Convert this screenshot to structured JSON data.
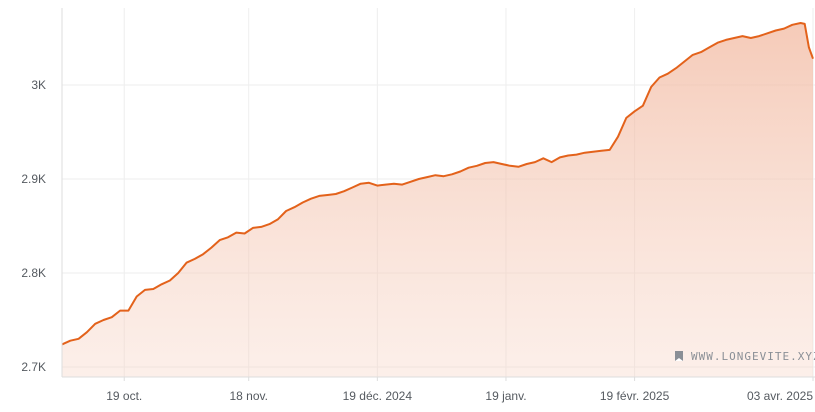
{
  "chart_data": {
    "type": "area",
    "title": "",
    "xlabel": "",
    "ylabel": "",
    "ylim": [
      2700,
      3075
    ],
    "xlim": [
      "2024-10-04",
      "2025-04-03"
    ],
    "grid": true,
    "legend": "none",
    "colors": {
      "line": "#e3621b",
      "fill": "#f1b49a",
      "grid": "#eeeeee",
      "axis": "#dddddd"
    },
    "y_ticks": [
      {
        "value": 2700,
        "label": "2.7K"
      },
      {
        "value": 2800,
        "label": "2.8K"
      },
      {
        "value": 2900,
        "label": "2.9K"
      },
      {
        "value": 3000,
        "label": "3K"
      }
    ],
    "x_ticks": [
      {
        "date": "2024-10-19",
        "label": "19 oct."
      },
      {
        "date": "2024-11-18",
        "label": "18 nov."
      },
      {
        "date": "2024-12-19",
        "label": "19 déc. 2024"
      },
      {
        "date": "2025-01-19",
        "label": "19 janv."
      },
      {
        "date": "2025-02-19",
        "label": "19 févr. 2025"
      },
      {
        "date": "2025-04-03",
        "label": "03 avr. 2025"
      }
    ],
    "series": [
      {
        "x": [
          "2024-10-04",
          "2024-10-06",
          "2024-10-08",
          "2024-10-10",
          "2024-10-12",
          "2024-10-14",
          "2024-10-16",
          "2024-10-18",
          "2024-10-20",
          "2024-10-22",
          "2024-10-24",
          "2024-10-26",
          "2024-10-28",
          "2024-10-30",
          "2024-11-01",
          "2024-11-03",
          "2024-11-05",
          "2024-11-07",
          "2024-11-09",
          "2024-11-11",
          "2024-11-13",
          "2024-11-15",
          "2024-11-17",
          "2024-11-19",
          "2024-11-21",
          "2024-11-23",
          "2024-11-25",
          "2024-11-27",
          "2024-11-29",
          "2024-12-01",
          "2024-12-03",
          "2024-12-05",
          "2024-12-07",
          "2024-12-09",
          "2024-12-11",
          "2024-12-13",
          "2024-12-15",
          "2024-12-17",
          "2024-12-19",
          "2024-12-21",
          "2024-12-23",
          "2024-12-25",
          "2024-12-27",
          "2024-12-29",
          "2024-12-31",
          "2025-01-02",
          "2025-01-04",
          "2025-01-06",
          "2025-01-08",
          "2025-01-10",
          "2025-01-12",
          "2025-01-14",
          "2025-01-16",
          "2025-01-18",
          "2025-01-20",
          "2025-01-22",
          "2025-01-24",
          "2025-01-26",
          "2025-01-28",
          "2025-01-30",
          "2025-02-01",
          "2025-02-03",
          "2025-02-05",
          "2025-02-07",
          "2025-02-09",
          "2025-02-11",
          "2025-02-13",
          "2025-02-15",
          "2025-02-17",
          "2025-02-19",
          "2025-02-21",
          "2025-02-23",
          "2025-02-25",
          "2025-02-27",
          "2025-03-01",
          "2025-03-03",
          "2025-03-05",
          "2025-03-07",
          "2025-03-09",
          "2025-03-11",
          "2025-03-13",
          "2025-03-15",
          "2025-03-17",
          "2025-03-19",
          "2025-03-21",
          "2025-03-23",
          "2025-03-25",
          "2025-03-27",
          "2025-03-29",
          "2025-03-31",
          "2025-04-01",
          "2025-04-02",
          "2025-04-03"
        ],
        "y": [
          2724,
          2728,
          2730,
          2737,
          2746,
          2750,
          2753,
          2760,
          2760,
          2775,
          2782,
          2783,
          2788,
          2792,
          2800,
          2811,
          2815,
          2820,
          2827,
          2835,
          2838,
          2843,
          2842,
          2848,
          2849,
          2852,
          2857,
          2866,
          2870,
          2875,
          2879,
          2882,
          2883,
          2884,
          2887,
          2891,
          2895,
          2896,
          2893,
          2894,
          2895,
          2894,
          2897,
          2900,
          2902,
          2904,
          2903,
          2905,
          2908,
          2912,
          2914,
          2917,
          2918,
          2916,
          2914,
          2913,
          2916,
          2918,
          2922,
          2918,
          2923,
          2925,
          2926,
          2928,
          2929,
          2930,
          2931,
          2945,
          2965,
          2972,
          2978,
          2998,
          3008,
          3012,
          3018,
          3025,
          3032,
          3035,
          3040,
          3045,
          3048,
          3050,
          3052,
          3050,
          3052,
          3055,
          3058,
          3060,
          3064,
          3066,
          3065,
          3040,
          3028
        ]
      }
    ]
  },
  "watermark": {
    "text": "WWW.LONGEVITE.XYZ",
    "icon": "flag-icon"
  }
}
